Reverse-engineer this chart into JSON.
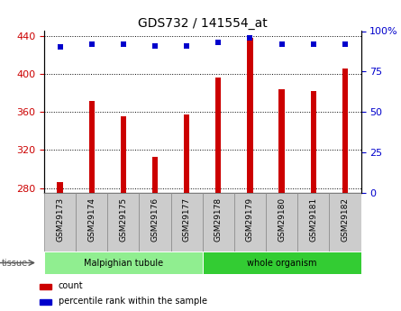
{
  "title": "GDS732 / 141554_at",
  "samples": [
    "GSM29173",
    "GSM29174",
    "GSM29175",
    "GSM29176",
    "GSM29177",
    "GSM29178",
    "GSM29179",
    "GSM29180",
    "GSM29181",
    "GSM29182"
  ],
  "counts": [
    286,
    372,
    355,
    313,
    357,
    396,
    438,
    384,
    382,
    406
  ],
  "percentiles": [
    90,
    92,
    92,
    91,
    91,
    93,
    96,
    92,
    92,
    92
  ],
  "ylim_left": [
    275,
    445
  ],
  "ylim_right": [
    0,
    100
  ],
  "yticks_left": [
    280,
    320,
    360,
    400,
    440
  ],
  "yticks_right": [
    0,
    25,
    50,
    75,
    100
  ],
  "bar_color": "#cc0000",
  "dot_color": "#0000cc",
  "grid_color": "#000000",
  "tissue_groups": [
    {
      "label": "Malpighian tubule",
      "start": 0,
      "end": 5,
      "color": "#90ee90"
    },
    {
      "label": "whole organism",
      "start": 5,
      "end": 10,
      "color": "#33cc33"
    }
  ],
  "legend_items": [
    {
      "label": "count",
      "color": "#cc0000"
    },
    {
      "label": "percentile rank within the sample",
      "color": "#0000cc"
    }
  ],
  "tick_label_color_left": "#cc0000",
  "tick_label_color_right": "#0000cc",
  "tissue_label": "tissue",
  "sample_label_bg": "#cccccc",
  "bar_width": 0.18
}
